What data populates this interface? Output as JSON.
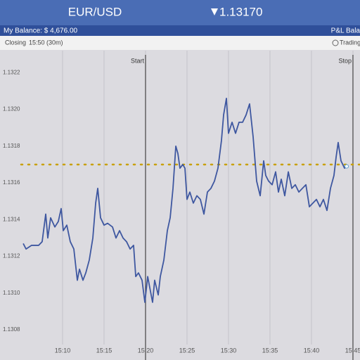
{
  "header": {
    "pair": "EUR/USD",
    "price": "1.13170"
  },
  "balance_bar": {
    "balance": "My Balance: $ 4,676.00",
    "pnl": "P&L Bala"
  },
  "info_bar": {
    "closing": "Closing",
    "closing_time": "15:50 (30m)",
    "trading": "Trading"
  },
  "chart_data": {
    "type": "line",
    "color": "#3e57a0",
    "x": [
      905.26,
      905.6,
      906.27,
      907.12,
      907.54,
      907.97,
      908.22,
      908.56,
      909.07,
      909.49,
      909.83,
      910.09,
      910.51,
      910.93,
      911.36,
      911.78,
      912.04,
      912.46,
      912.8,
      913.22,
      913.65,
      913.99,
      914.24,
      914.58,
      915.0,
      915.43,
      916.02,
      916.44,
      916.87,
      917.29,
      917.71,
      918.14,
      918.56,
      918.82,
      919.15,
      919.58,
      919.92,
      920.26,
      920.51,
      920.85,
      921.1,
      921.53,
      921.78,
      922.21,
      922.63,
      922.97,
      923.31,
      923.65,
      923.9,
      924.15,
      924.49,
      924.75,
      925.0,
      925.34,
      925.76,
      926.19,
      926.61,
      927.04,
      927.46,
      927.88,
      928.31,
      928.73,
      929.15,
      929.41,
      929.75,
      930.0,
      930.43,
      930.85,
      931.27,
      931.7,
      932.12,
      932.54,
      932.97,
      933.39,
      933.82,
      934.24,
      934.49,
      934.83,
      935.26,
      935.68,
      936.02,
      936.36,
      936.78,
      937.21,
      937.63,
      938.05,
      938.48,
      938.9,
      939.33,
      939.75,
      940.17,
      940.6,
      941.02,
      941.44,
      941.87,
      942.29,
      942.71,
      942.97,
      943.22,
      943.56,
      943.99,
      944.24
    ],
    "series": [
      {
        "values": [
          1.13127,
          1.13124,
          1.13126,
          1.13126,
          1.13128,
          1.13143,
          1.1313,
          1.13141,
          1.13136,
          1.13139,
          1.13146,
          1.13134,
          1.13137,
          1.13128,
          1.13124,
          1.13107,
          1.13113,
          1.13107,
          1.13111,
          1.13118,
          1.1313,
          1.13149,
          1.13157,
          1.13141,
          1.13137,
          1.13138,
          1.13136,
          1.1313,
          1.13134,
          1.1313,
          1.13128,
          1.13124,
          1.13126,
          1.13109,
          1.13111,
          1.13107,
          1.13095,
          1.13109,
          1.13103,
          1.13095,
          1.13107,
          1.13099,
          1.13109,
          1.13118,
          1.13134,
          1.13141,
          1.13157,
          1.1318,
          1.13176,
          1.13168,
          1.1317,
          1.13168,
          1.13151,
          1.13155,
          1.13149,
          1.13153,
          1.13151,
          1.13143,
          1.13155,
          1.13157,
          1.13161,
          1.13168,
          1.13183,
          1.13197,
          1.13206,
          1.13187,
          1.13193,
          1.13187,
          1.13193,
          1.13193,
          1.13197,
          1.13203,
          1.13185,
          1.13161,
          1.13153,
          1.13172,
          1.13164,
          1.13161,
          1.13159,
          1.13166,
          1.13155,
          1.13162,
          1.13153,
          1.13166,
          1.13157,
          1.13159,
          1.13155,
          1.13157,
          1.13159,
          1.13147,
          1.13149,
          1.13151,
          1.13147,
          1.13151,
          1.13145,
          1.13157,
          1.13164,
          1.13174,
          1.13182,
          1.13172,
          1.13168,
          1.13169
        ]
      }
    ],
    "xlim": [
      902.46,
      945.85
    ],
    "ylim": [
      1.13072,
      1.13232
    ],
    "xticks": [
      {
        "value": 910,
        "label": "15:10"
      },
      {
        "value": 915,
        "label": "15:15"
      },
      {
        "value": 920,
        "label": "15:20"
      },
      {
        "value": 925,
        "label": "15:25"
      },
      {
        "value": 930,
        "label": "15:30"
      },
      {
        "value": 935,
        "label": "15:35"
      },
      {
        "value": 940,
        "label": "15:40"
      },
      {
        "value": 945,
        "label": "15:45"
      }
    ],
    "yticks": [
      1.1322,
      {
        "value": 1.132,
        "label": "1.1320"
      },
      1.1318,
      1.1316,
      1.1314,
      1.1312,
      {
        "value": 1.131,
        "label": "1.1310"
      },
      1.1308
    ],
    "markers": [
      {
        "label": "Start",
        "x": 920
      },
      {
        "label": "Stop",
        "x": 945
      }
    ],
    "reference_line": {
      "value": 1.1317,
      "color": "#c8a000"
    }
  }
}
